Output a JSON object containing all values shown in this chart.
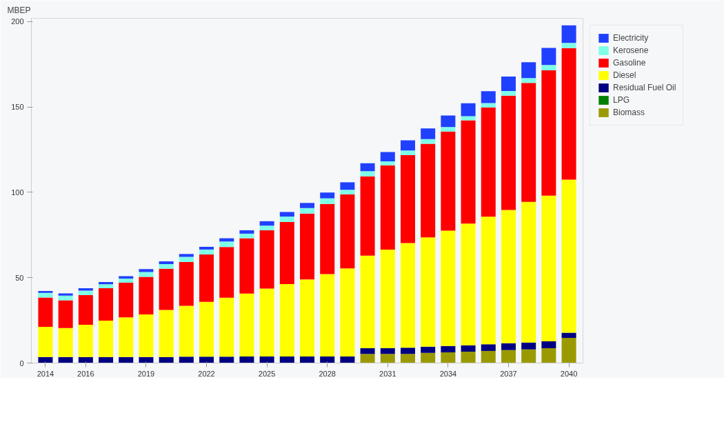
{
  "chart_data": {
    "type": "bar",
    "stacked": true,
    "ylabel": "MBEP",
    "categories": [
      "2014",
      null,
      "2016",
      null,
      null,
      "2019",
      null,
      null,
      "2022",
      null,
      null,
      "2025",
      null,
      null,
      "2028",
      null,
      null,
      "2031",
      null,
      null,
      "2034",
      null,
      null,
      "2037",
      null,
      null,
      "2040"
    ],
    "series": [
      {
        "name": "Biomass",
        "color": "#9a9a00",
        "values": [
          0,
          0,
          0,
          0,
          0,
          0,
          0,
          0,
          0,
          0,
          0,
          0,
          0,
          0,
          0,
          0,
          5.4,
          5.4,
          5.4,
          6,
          6.3,
          6.7,
          7.1,
          7.6,
          8,
          8.7,
          14.7
        ]
      },
      {
        "name": "LPG",
        "color": "#008000",
        "values": [
          0,
          0,
          0,
          0,
          0,
          0,
          0,
          0,
          0,
          0,
          0,
          0,
          0,
          0,
          0,
          0,
          0,
          0,
          0,
          0,
          0,
          0,
          0,
          0,
          0,
          0,
          0
        ]
      },
      {
        "name": "Residual Fuel Oil",
        "color": "#000080",
        "values": [
          3.5,
          3.5,
          3.5,
          3.5,
          3.5,
          3.5,
          3.5,
          3.7,
          3.7,
          3.7,
          3.8,
          3.8,
          3.8,
          3.8,
          3.8,
          3.8,
          3.3,
          3.3,
          3.6,
          3.6,
          3.7,
          3.7,
          3.9,
          4,
          4,
          4,
          3.1
        ]
      },
      {
        "name": "Diesel",
        "color": "#ffff00",
        "values": [
          17.7,
          17,
          18.9,
          21.3,
          23.3,
          25,
          27.6,
          29.8,
          32.2,
          34.6,
          36.9,
          39.8,
          42.5,
          45.2,
          48.3,
          51.6,
          54.2,
          57.8,
          61.3,
          64,
          67.6,
          71.3,
          74.7,
          78.1,
          82.4,
          85.4,
          89.7
        ]
      },
      {
        "name": "Gasoline",
        "color": "#ff0000",
        "values": [
          17.2,
          16.3,
          17.4,
          19,
          20.3,
          22,
          24.1,
          25.7,
          27.7,
          29.7,
          32.4,
          34.2,
          36.4,
          38.6,
          41.1,
          43.4,
          46.5,
          49.3,
          51.5,
          54.9,
          58,
          60.5,
          64,
          67,
          69.7,
          73.4,
          77
        ]
      },
      {
        "name": "Kerosene",
        "color": "#80ffe8",
        "values": [
          2.7,
          2.7,
          2.6,
          2.4,
          2.4,
          2.8,
          2.8,
          3,
          2.9,
          3.2,
          2.7,
          2.7,
          3.1,
          3.2,
          3.3,
          2.7,
          3,
          2.4,
          2.7,
          2.7,
          2.7,
          2.4,
          2.6,
          2.7,
          2.9,
          3.1,
          3.1
        ]
      },
      {
        "name": "Electricity",
        "color": "#2040ff",
        "values": [
          1.1,
          1.3,
          1.4,
          1.3,
          1.4,
          1.7,
          1.6,
          1.7,
          1.6,
          1.9,
          2,
          2.6,
          2.7,
          3,
          3.4,
          4.4,
          4.7,
          5.4,
          6,
          6.3,
          6.7,
          7.6,
          7,
          8.5,
          9.2,
          10,
          10.3
        ]
      }
    ],
    "ylim": [
      0,
      202
    ],
    "yticks": [
      0,
      50,
      100,
      150,
      200
    ],
    "grid": false,
    "legend": "top right"
  }
}
